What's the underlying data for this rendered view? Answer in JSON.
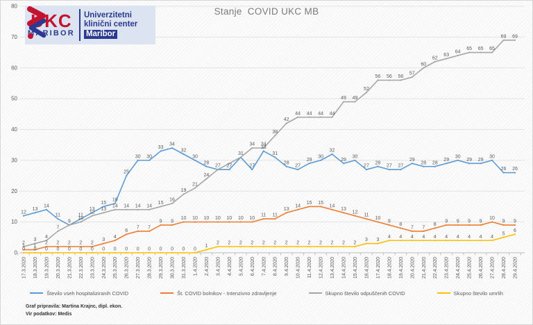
{
  "logo": {
    "abbr": "UKC",
    "city": "MARIBOR",
    "name_line1": "Univerzitetni",
    "name_line2": "klinični center",
    "name_line3": "Maribor"
  },
  "footer": {
    "line1": "Graf pripravila: Martina Krajnc, dipl. ekon.",
    "line2": "Vir podatkov: Medis"
  },
  "chart_data": {
    "type": "line",
    "title": "Stanje  COVID UKC MB",
    "xlabel": "",
    "ylabel": "",
    "ylim": [
      0,
      80
    ],
    "ytick_step": 10,
    "grid": true,
    "legend_position": "bottom",
    "data_labels": true,
    "categories": [
      "17.3.2020",
      "18.3.2020",
      "19.3.2020",
      "20.3.2020",
      "21.3.2020",
      "22.3.2020",
      "23.3.2020",
      "24.3.2020",
      "25.3.2020",
      "26.3.2020",
      "27.3.2020",
      "28.3.2020",
      "29.3.2020",
      "30.3.2020",
      "31.3.2020",
      "1.4.2020",
      "2.4.2020",
      "3.4.2020",
      "4.4.2020",
      "5.4.2020",
      "6.4.2020",
      "7.4.2020",
      "8.4.2020",
      "9.4.2020",
      "10.4.2020",
      "11.4.2020",
      "12.4.2020",
      "13.4.2020",
      "14.4.2020",
      "15.4.2020",
      "16.4.2020",
      "17.4.2020",
      "18.4.2020",
      "19.4.2020",
      "20.4.2020",
      "21.4.2020",
      "22.4.2020",
      "23.4.2020",
      "24.4.2020",
      "25.4.2020",
      "26.4.2020",
      "27.4.2020",
      "28.4.2020",
      "29.4.2020"
    ],
    "series": [
      {
        "name": "Število vseh hospitaliziranih COVID",
        "color": "#5B9BD5",
        "values": [
          12,
          13,
          14,
          11,
          9,
          11,
          13,
          15,
          16,
          25,
          30,
          30,
          33,
          34,
          32,
          30,
          28,
          27,
          27,
          31,
          27,
          33,
          31,
          28,
          27,
          29,
          30,
          32,
          29,
          30,
          27,
          28,
          27,
          27,
          29,
          28,
          28,
          29,
          30,
          29,
          29,
          30,
          26,
          26
        ],
        "label_hidden": []
      },
      {
        "name": "Št. COVID bolnikov - Intenzivno zdravljenje",
        "color": "#ED7D31",
        "values": [
          1,
          1,
          2,
          2,
          2,
          2,
          2,
          3,
          4,
          6,
          7,
          7,
          9,
          9,
          10,
          10,
          10,
          10,
          10,
          10,
          10,
          11,
          11,
          13,
          14,
          15,
          15,
          14,
          13,
          12,
          11,
          10,
          9,
          8,
          7,
          7,
          8,
          9,
          9,
          9,
          9,
          10,
          9,
          9
        ],
        "label_hidden": []
      },
      {
        "name": "Skupno število odpuščenih COVID",
        "color": "#A5A5A5",
        "values": [
          2,
          3,
          4,
          7,
          9,
          10,
          12,
          13,
          14,
          14,
          14,
          14,
          15,
          16,
          19,
          21,
          24,
          27,
          29,
          31,
          34,
          34,
          38,
          42,
          44,
          44,
          44,
          44,
          49,
          49,
          52,
          56,
          56,
          56,
          57,
          60,
          62,
          63,
          64,
          65,
          65,
          65,
          69,
          69
        ],
        "label_hidden": [
          4,
          17,
          18,
          19
        ]
      },
      {
        "name": "Skupno število umrlih",
        "color": "#FFC000",
        "values": [
          0,
          0,
          0,
          0,
          0,
          0,
          0,
          0,
          0,
          0,
          0,
          0,
          0,
          0,
          0,
          0,
          1,
          2,
          2,
          2,
          2,
          2,
          2,
          2,
          2,
          2,
          2,
          2,
          2,
          2,
          3,
          3,
          4,
          4,
          4,
          4,
          4,
          4,
          4,
          4,
          4,
          4,
          5,
          6
        ],
        "label_hidden": []
      }
    ]
  }
}
